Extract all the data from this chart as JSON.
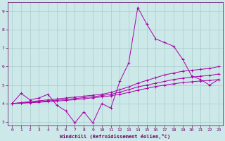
{
  "xlabel": "Windchill (Refroidissement éolien,°C)",
  "background_color": "#cce8e8",
  "grid_color": "#aacccc",
  "line_color": "#aa00aa",
  "spine_color": "#660066",
  "xlim": [
    -0.5,
    23.5
  ],
  "ylim": [
    2.8,
    9.5
  ],
  "yticks": [
    3,
    4,
    5,
    6,
    7,
    8,
    9
  ],
  "xticks": [
    0,
    1,
    2,
    3,
    4,
    5,
    6,
    7,
    8,
    9,
    10,
    11,
    12,
    13,
    14,
    15,
    16,
    17,
    18,
    19,
    20,
    21,
    22,
    23
  ],
  "lines": [
    {
      "x": [
        0,
        1,
        2,
        3,
        4,
        5,
        6,
        7,
        8,
        9,
        10,
        11,
        12,
        13,
        14,
        15,
        16,
        17,
        18,
        19,
        20,
        21,
        22,
        23
      ],
      "y": [
        4.0,
        4.55,
        4.2,
        4.3,
        4.5,
        3.9,
        3.6,
        2.95,
        3.55,
        2.95,
        4.0,
        3.75,
        5.2,
        6.2,
        9.2,
        8.3,
        7.5,
        7.3,
        7.1,
        6.4,
        5.5,
        5.3,
        5.0,
        5.3
      ]
    },
    {
      "x": [
        0,
        1,
        2,
        3,
        4,
        5,
        6,
        7,
        8,
        9,
        10,
        11,
        12,
        13,
        14,
        15,
        16,
        17,
        18,
        19,
        20,
        21,
        22,
        23
      ],
      "y": [
        4.0,
        4.05,
        4.1,
        4.15,
        4.2,
        4.25,
        4.3,
        4.35,
        4.4,
        4.45,
        4.5,
        4.6,
        4.75,
        4.9,
        5.1,
        5.25,
        5.4,
        5.55,
        5.65,
        5.75,
        5.8,
        5.85,
        5.9,
        6.0
      ]
    },
    {
      "x": [
        0,
        1,
        2,
        3,
        4,
        5,
        6,
        7,
        8,
        9,
        10,
        11,
        12,
        13,
        14,
        15,
        16,
        17,
        18,
        19,
        20,
        21,
        22,
        23
      ],
      "y": [
        4.0,
        4.03,
        4.06,
        4.1,
        4.14,
        4.18,
        4.22,
        4.27,
        4.32,
        4.37,
        4.43,
        4.5,
        4.62,
        4.75,
        4.9,
        5.0,
        5.1,
        5.2,
        5.3,
        5.37,
        5.43,
        5.48,
        5.52,
        5.6
      ]
    },
    {
      "x": [
        0,
        1,
        2,
        3,
        4,
        5,
        6,
        7,
        8,
        9,
        10,
        11,
        12,
        13,
        14,
        15,
        16,
        17,
        18,
        19,
        20,
        21,
        22,
        23
      ],
      "y": [
        4.0,
        4.02,
        4.04,
        4.07,
        4.1,
        4.13,
        4.17,
        4.21,
        4.26,
        4.31,
        4.36,
        4.42,
        4.5,
        4.6,
        4.72,
        4.82,
        4.92,
        5.0,
        5.07,
        5.13,
        5.18,
        5.22,
        5.25,
        5.3
      ]
    }
  ]
}
